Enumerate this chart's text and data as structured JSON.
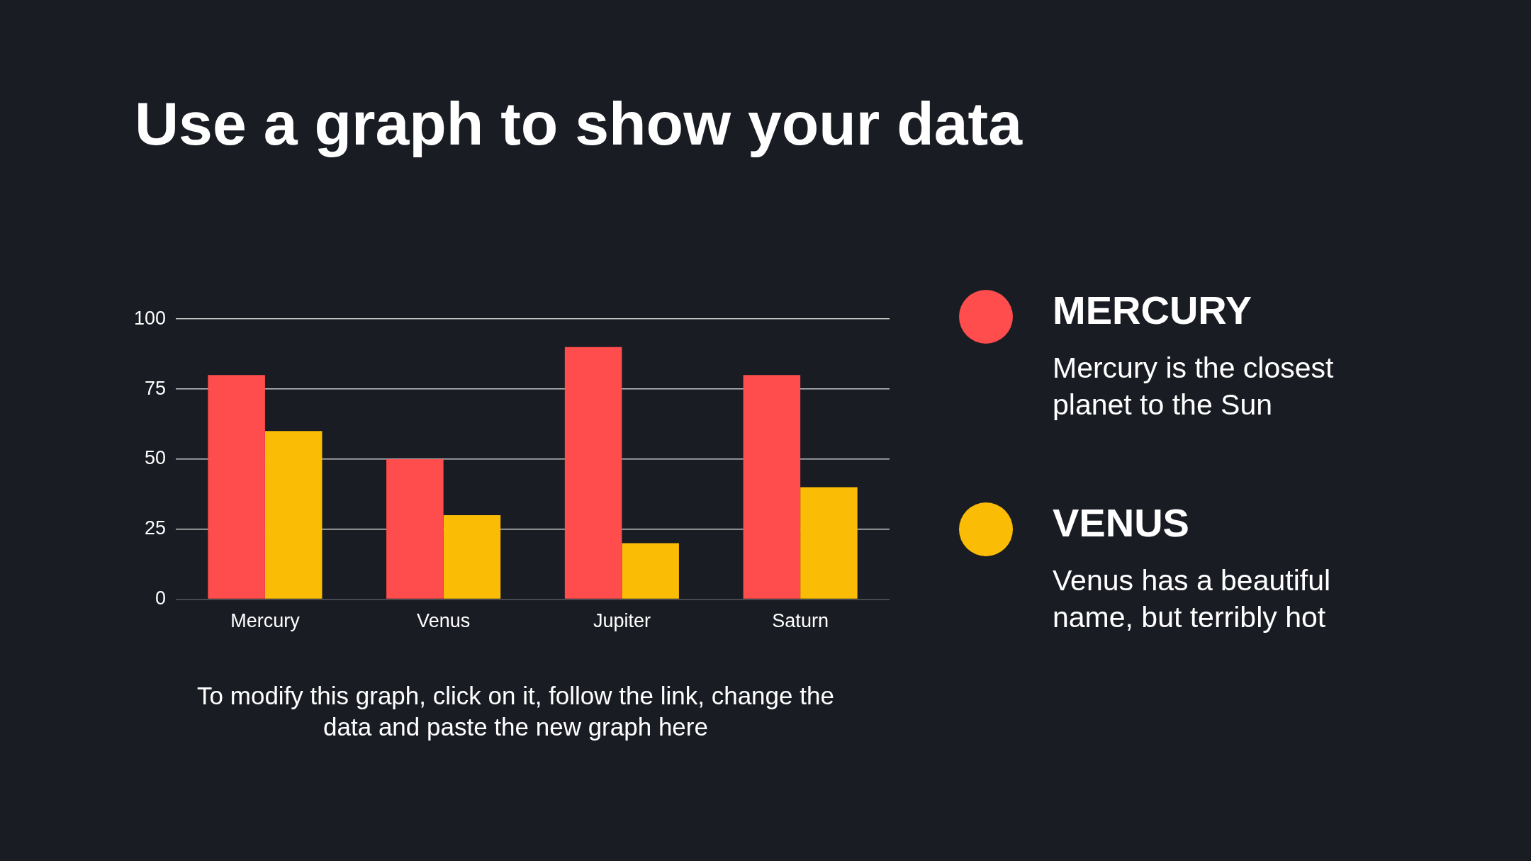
{
  "chart_data": {
    "type": "bar",
    "title": "Use a graph to show your data",
    "categories": [
      "Mercury",
      "Venus",
      "Jupiter",
      "Saturn"
    ],
    "series": [
      {
        "name": "MERCURY",
        "color": "#ff4c4c",
        "values": [
          80,
          50,
          90,
          80
        ]
      },
      {
        "name": "VENUS",
        "color": "#fbbc05",
        "values": [
          60,
          30,
          20,
          40
        ]
      }
    ],
    "ylim": [
      0,
      100
    ],
    "yticks": [
      0,
      25,
      50,
      75,
      100
    ],
    "grid": "y",
    "legend": "right",
    "annotations": [
      "Mercury is the closest planet to the Sun",
      "Venus has a beautiful name, but terribly hot",
      "To modify this graph, click on it, follow the link, change the data and paste the new graph here"
    ]
  }
}
